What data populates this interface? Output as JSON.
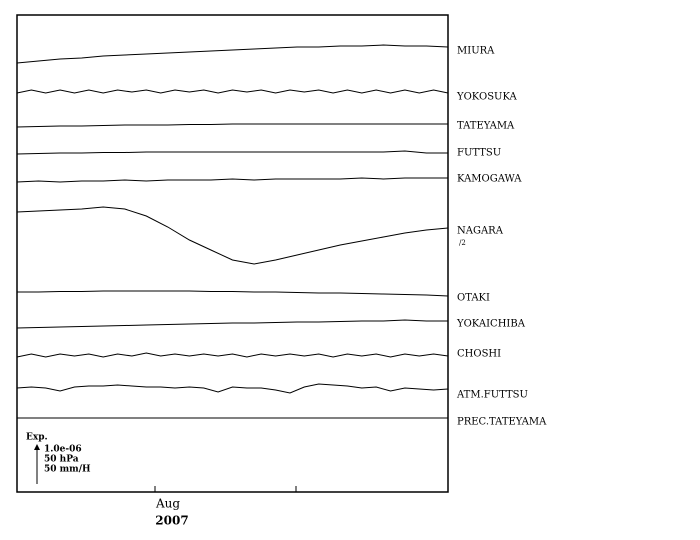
{
  "chart_data": {
    "type": "traces",
    "series": [
      {
        "name": "MIURA",
        "values": [
          0,
          2,
          4,
          5,
          7,
          8,
          9,
          10,
          11,
          12,
          13,
          14,
          15,
          16,
          16,
          17,
          17,
          18,
          17,
          17,
          16
        ]
      },
      {
        "name": "YOKOSUKA",
        "values": [
          0,
          3,
          0,
          3,
          0,
          3,
          0,
          3,
          1,
          3,
          0,
          3,
          1,
          3,
          0,
          3,
          1,
          3,
          0,
          3,
          1,
          3,
          0,
          3,
          0,
          3,
          0,
          3,
          0,
          3,
          0
        ]
      },
      {
        "name": "TATEYAMA",
        "values": [
          0,
          0.5,
          1,
          1,
          1.5,
          2,
          2,
          2,
          2.5,
          2.5,
          3,
          3,
          3,
          3,
          3,
          3,
          3,
          3,
          3,
          3,
          3
        ]
      },
      {
        "name": "FUTTSU",
        "values": [
          0,
          0.5,
          1,
          1,
          1.5,
          1.5,
          2,
          2,
          2,
          2,
          2,
          2,
          2,
          2,
          2,
          2,
          2,
          2,
          3,
          1,
          1
        ]
      },
      {
        "name": "KAMOGAWA",
        "values": [
          0,
          1,
          0,
          1,
          1,
          2,
          1,
          2,
          2,
          2,
          3,
          2,
          3,
          3,
          3,
          3,
          4,
          3,
          4,
          4,
          4
        ]
      },
      {
        "name": "NAGARA",
        "note": "/2",
        "values": [
          0,
          1,
          2,
          3,
          5,
          3,
          -4,
          -15,
          -28,
          -38,
          -48,
          -52,
          -48,
          -43,
          -38,
          -33,
          -29,
          -25,
          -21,
          -18,
          -16
        ]
      },
      {
        "name": "OTAKI",
        "values": [
          0,
          0,
          0.5,
          0.5,
          1,
          1,
          1,
          1,
          1,
          0.5,
          0.5,
          0,
          0,
          -0.5,
          -1,
          -1,
          -1.5,
          -2,
          -2.5,
          -3,
          -4
        ]
      },
      {
        "name": "YOKAICHIBA",
        "values": [
          0,
          0.5,
          1,
          1.5,
          2,
          2.5,
          3,
          3.5,
          4,
          4.5,
          5,
          5,
          5.5,
          6,
          6,
          6.5,
          7,
          7,
          8,
          7,
          7
        ]
      },
      {
        "name": "CHOSHI",
        "values": [
          0,
          3,
          0,
          3,
          1,
          3,
          0,
          3,
          1,
          4,
          1,
          3,
          1,
          3,
          1,
          3,
          0,
          3,
          1,
          3,
          1,
          3,
          0,
          3,
          1,
          3,
          0,
          3,
          1,
          3,
          1
        ]
      },
      {
        "name": "ATM.FUTTSU",
        "values": [
          0,
          1,
          0,
          -3,
          1,
          2,
          2,
          3,
          2,
          1,
          1,
          0,
          1,
          0,
          -4,
          1,
          0,
          0,
          -2,
          -5,
          1,
          4,
          3,
          2,
          0,
          1,
          -3,
          0,
          -1,
          -2,
          -1
        ]
      },
      {
        "name": "PREC.TATEYAMA",
        "values": [
          0,
          0
        ]
      }
    ],
    "scale_title": "Exp.",
    "scale_labels": [
      "1.0e-06",
      "50 hPa",
      "50 mm/H"
    ],
    "xtick_labels": [
      "Aug"
    ],
    "xlabel": "2007"
  }
}
